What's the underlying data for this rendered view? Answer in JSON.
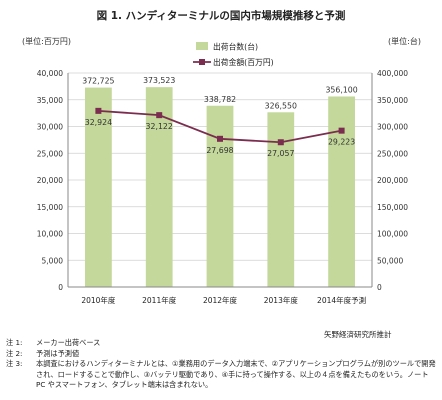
{
  "title": "図 1. ハンディターミナルの国内市場規模推移と予測",
  "unit_left": "(単位:百万円)",
  "unit_right": "(単位:台)",
  "source": "矢野経済研究所推計",
  "notes": [
    {
      "key": "注 1:",
      "text": "メーカー出荷ベース"
    },
    {
      "key": "注 2:",
      "text": "予測は予測値"
    },
    {
      "key": "注 3:",
      "text": "本調査におけるハンディターミナルとは、①業務用のデータ入力端末で、②アプリケーションプログラムが別のツールで開発され、ロードすることで動作し、③バッテリ駆動であり、④手に持って操作する、以上の４点を備えたものをいう。ノートPC やスマートフォン、タブレット端末は含まれない。"
    }
  ],
  "colors": {
    "bar": "#c3d89a",
    "line": "#7b2d4f",
    "axis": "#888888",
    "grid": "#d0d0d0"
  },
  "chart_data": {
    "type": "bar+line",
    "categories": [
      "2010年度",
      "2011年度",
      "2012年度",
      "2013年度",
      "2014年度予測"
    ],
    "series": [
      {
        "name": "出荷台数(台)",
        "type": "bar",
        "axis": "right",
        "values": [
          372725,
          373523,
          338782,
          326550,
          356100
        ],
        "labels": [
          "372,725",
          "373,523",
          "338,782",
          "326,550",
          "356,100"
        ]
      },
      {
        "name": "出荷金額(百万円)",
        "type": "line",
        "axis": "left",
        "values": [
          32924,
          32122,
          27698,
          27057,
          29223
        ],
        "labels": [
          "32,924",
          "32,122",
          "27,698",
          "27,057",
          "29,223"
        ]
      }
    ],
    "y_left": {
      "min": 0,
      "max": 40000,
      "ticks": [
        "0",
        "5,000",
        "10,000",
        "15,000",
        "20,000",
        "25,000",
        "30,000",
        "35,000",
        "40,000"
      ]
    },
    "y_right": {
      "min": 0,
      "max": 400000,
      "ticks": [
        "0",
        "50,000",
        "100,000",
        "150,000",
        "200,000",
        "250,000",
        "300,000",
        "350,000",
        "400,000"
      ]
    },
    "grid": true,
    "legend": "top-right"
  }
}
